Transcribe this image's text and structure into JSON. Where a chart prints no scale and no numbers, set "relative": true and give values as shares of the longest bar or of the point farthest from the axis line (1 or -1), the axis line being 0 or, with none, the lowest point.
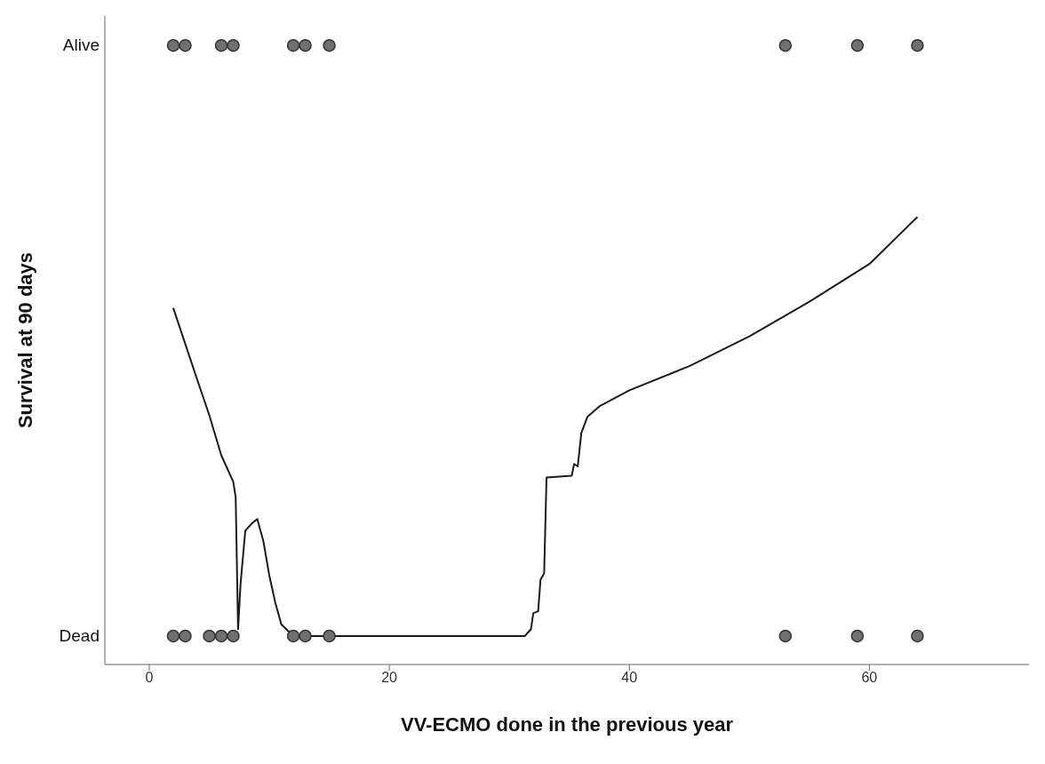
{
  "chart_data": {
    "type": "line",
    "xlabel": "VV-ECMO done in the previous year",
    "ylabel": "Survival at 90 days",
    "xlim": [
      -3.7,
      73.3
    ],
    "xticks": [
      0,
      20,
      40,
      60
    ],
    "relative": true,
    "annotations": [
      "Alive",
      "Dead"
    ],
    "grid": false,
    "legend": false,
    "marker": "circle",
    "series": [
      {
        "type": "scatter",
        "color": "#707070",
        "x": [
          2,
          3,
          6,
          7,
          12,
          13,
          15,
          53,
          59,
          64,
          2,
          3,
          5,
          6,
          7,
          12,
          13,
          15,
          53,
          59,
          64
        ],
        "values": [
          1,
          1,
          1,
          1,
          1,
          1,
          1,
          1,
          1,
          1,
          0.046,
          0.046,
          0.046,
          0.046,
          0.046,
          0.046,
          0.046,
          0.046,
          0.046,
          0.046,
          0.046
        ]
      },
      {
        "color": "#1a1a1a",
        "line_style": "solid",
        "marker": "none",
        "x": [
          2,
          3,
          4,
          5,
          6,
          7,
          7.2,
          7.4,
          7.6,
          8,
          8.5,
          9,
          9.5,
          10,
          10.5,
          11,
          12,
          31.3,
          31.8,
          32,
          32.4,
          32.6,
          32.9,
          33.1,
          35.2,
          35.4,
          35.7,
          36,
          36.5,
          37.5,
          40,
          45,
          50,
          55,
          60,
          64
        ],
        "values": [
          0.576,
          0.518,
          0.46,
          0.403,
          0.338,
          0.295,
          0.27,
          0.057,
          0.129,
          0.216,
          0.227,
          0.235,
          0.2,
          0.144,
          0.1,
          0.065,
          0.046,
          0.046,
          0.057,
          0.083,
          0.086,
          0.137,
          0.147,
          0.302,
          0.305,
          0.324,
          0.32,
          0.374,
          0.4,
          0.417,
          0.443,
          0.482,
          0.53,
          0.586,
          0.647,
          0.723
        ]
      }
    ]
  }
}
